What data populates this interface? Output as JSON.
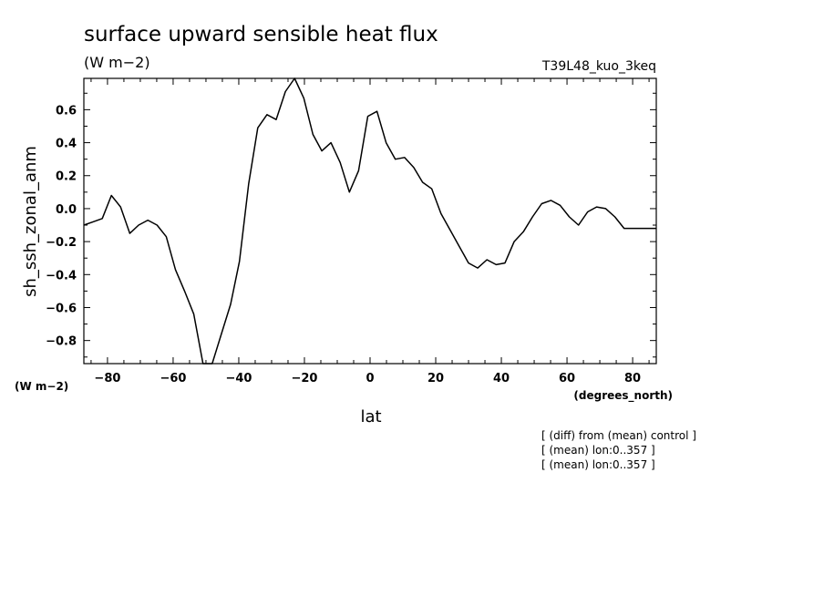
{
  "header": {
    "title": "surface upward sensible heat flux",
    "units": "(W m−2)",
    "run": "T39L48_kuo_3keq"
  },
  "axes": {
    "ylabel": "sh_ssh_zonal_anm",
    "xlabel": "lat",
    "y_units": "(W m−2)",
    "x_units": "(degrees_north)"
  },
  "notes": [
    "[ (diff) from (mean) control ]",
    "[ (mean) lon:0..357 ]",
    "[ (mean) lon:0..357 ]"
  ],
  "chart_data": {
    "type": "line",
    "title": "surface upward sensible heat flux",
    "xlabel": "lat",
    "ylabel": "sh_ssh_zonal_anm",
    "xlim": [
      -87.2,
      87.2
    ],
    "ylim": [
      -0.94,
      0.79
    ],
    "x_ticks": [
      -80,
      -60,
      -40,
      -20,
      0,
      20,
      40,
      60,
      80
    ],
    "x_tick_labels": [
      "−80",
      "−60",
      "−40",
      "−20",
      "0",
      "20",
      "40",
      "60",
      "80"
    ],
    "y_ticks": [
      -0.8,
      -0.6,
      -0.4,
      -0.2,
      0.0,
      0.2,
      0.4,
      0.6
    ],
    "y_tick_labels": [
      "−0.8",
      "−0.6",
      "−0.4",
      "−0.2",
      "0.0",
      "0.2",
      "0.4",
      "0.6"
    ],
    "grid": false,
    "series": [
      {
        "color": "#000000",
        "x": [
          -87.2,
          -84.4,
          -81.6,
          -78.8,
          -76.0,
          -73.2,
          -70.5,
          -67.7,
          -64.9,
          -62.1,
          -59.3,
          -56.5,
          -53.7,
          -50.9,
          -48.1,
          -45.3,
          -42.5,
          -39.8,
          -37.0,
          -34.2,
          -31.4,
          -28.6,
          -25.8,
          -23.0,
          -20.2,
          -17.4,
          -14.7,
          -11.9,
          -9.1,
          -6.3,
          -3.5,
          -0.7,
          2.1,
          4.9,
          7.7,
          10.5,
          13.3,
          16.0,
          18.8,
          21.6,
          24.4,
          27.2,
          30.0,
          32.8,
          35.6,
          38.4,
          41.1,
          43.9,
          46.7,
          49.5,
          52.3,
          55.1,
          57.9,
          60.7,
          63.5,
          66.3,
          69.0,
          71.8,
          74.6,
          77.4,
          80.2,
          83.0,
          85.8,
          87.2
        ],
        "y": [
          -0.1,
          -0.08,
          -0.06,
          0.08,
          0.01,
          -0.15,
          -0.1,
          -0.07,
          -0.1,
          -0.17,
          -0.37,
          -0.5,
          -0.64,
          -0.94,
          -0.94,
          -0.76,
          -0.58,
          -0.32,
          0.15,
          0.49,
          0.57,
          0.54,
          0.71,
          0.79,
          0.67,
          0.45,
          0.35,
          0.4,
          0.28,
          0.1,
          0.23,
          0.56,
          0.59,
          0.4,
          0.3,
          0.31,
          0.25,
          0.16,
          0.12,
          -0.03,
          -0.13,
          -0.23,
          -0.33,
          -0.36,
          -0.31,
          -0.34,
          -0.33,
          -0.2,
          -0.14,
          -0.05,
          0.03,
          0.05,
          0.02,
          -0.05,
          -0.1,
          -0.02,
          0.01,
          0.0,
          -0.05,
          -0.12,
          -0.12,
          -0.12,
          -0.12,
          -0.12
        ]
      }
    ]
  }
}
